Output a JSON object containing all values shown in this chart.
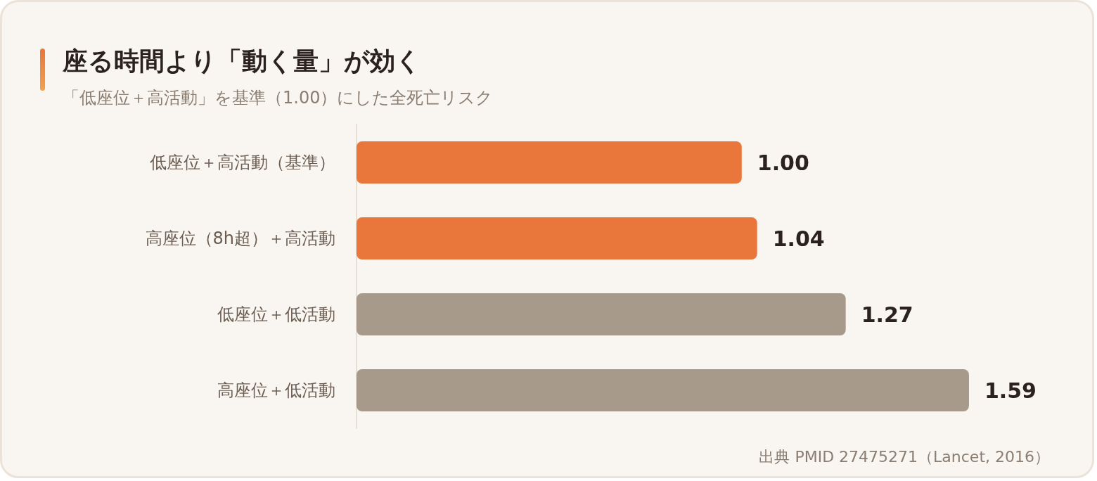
{
  "chart_data": {
    "type": "bar",
    "orientation": "horizontal",
    "title": "座る時間より「動く量」が効く",
    "subtitle": "「低座位＋高活動」を基準（1.00）にした全死亡リスク",
    "categories": [
      "低座位＋高活動（基準）",
      "高座位（8h超）＋高活動",
      "低座位＋低活動",
      "高座位＋低活動"
    ],
    "values": [
      1.0,
      1.04,
      1.27,
      1.59
    ],
    "colors": [
      "#e9763a",
      "#e9763a",
      "#a89a8a",
      "#a89a8a"
    ],
    "value_labels": [
      "1.00",
      "1.04",
      "1.27",
      "1.59"
    ],
    "tick_labels": "y",
    "annotations": [
      "出典 PMID 27475271（Lancet, 2016）"
    ]
  }
}
